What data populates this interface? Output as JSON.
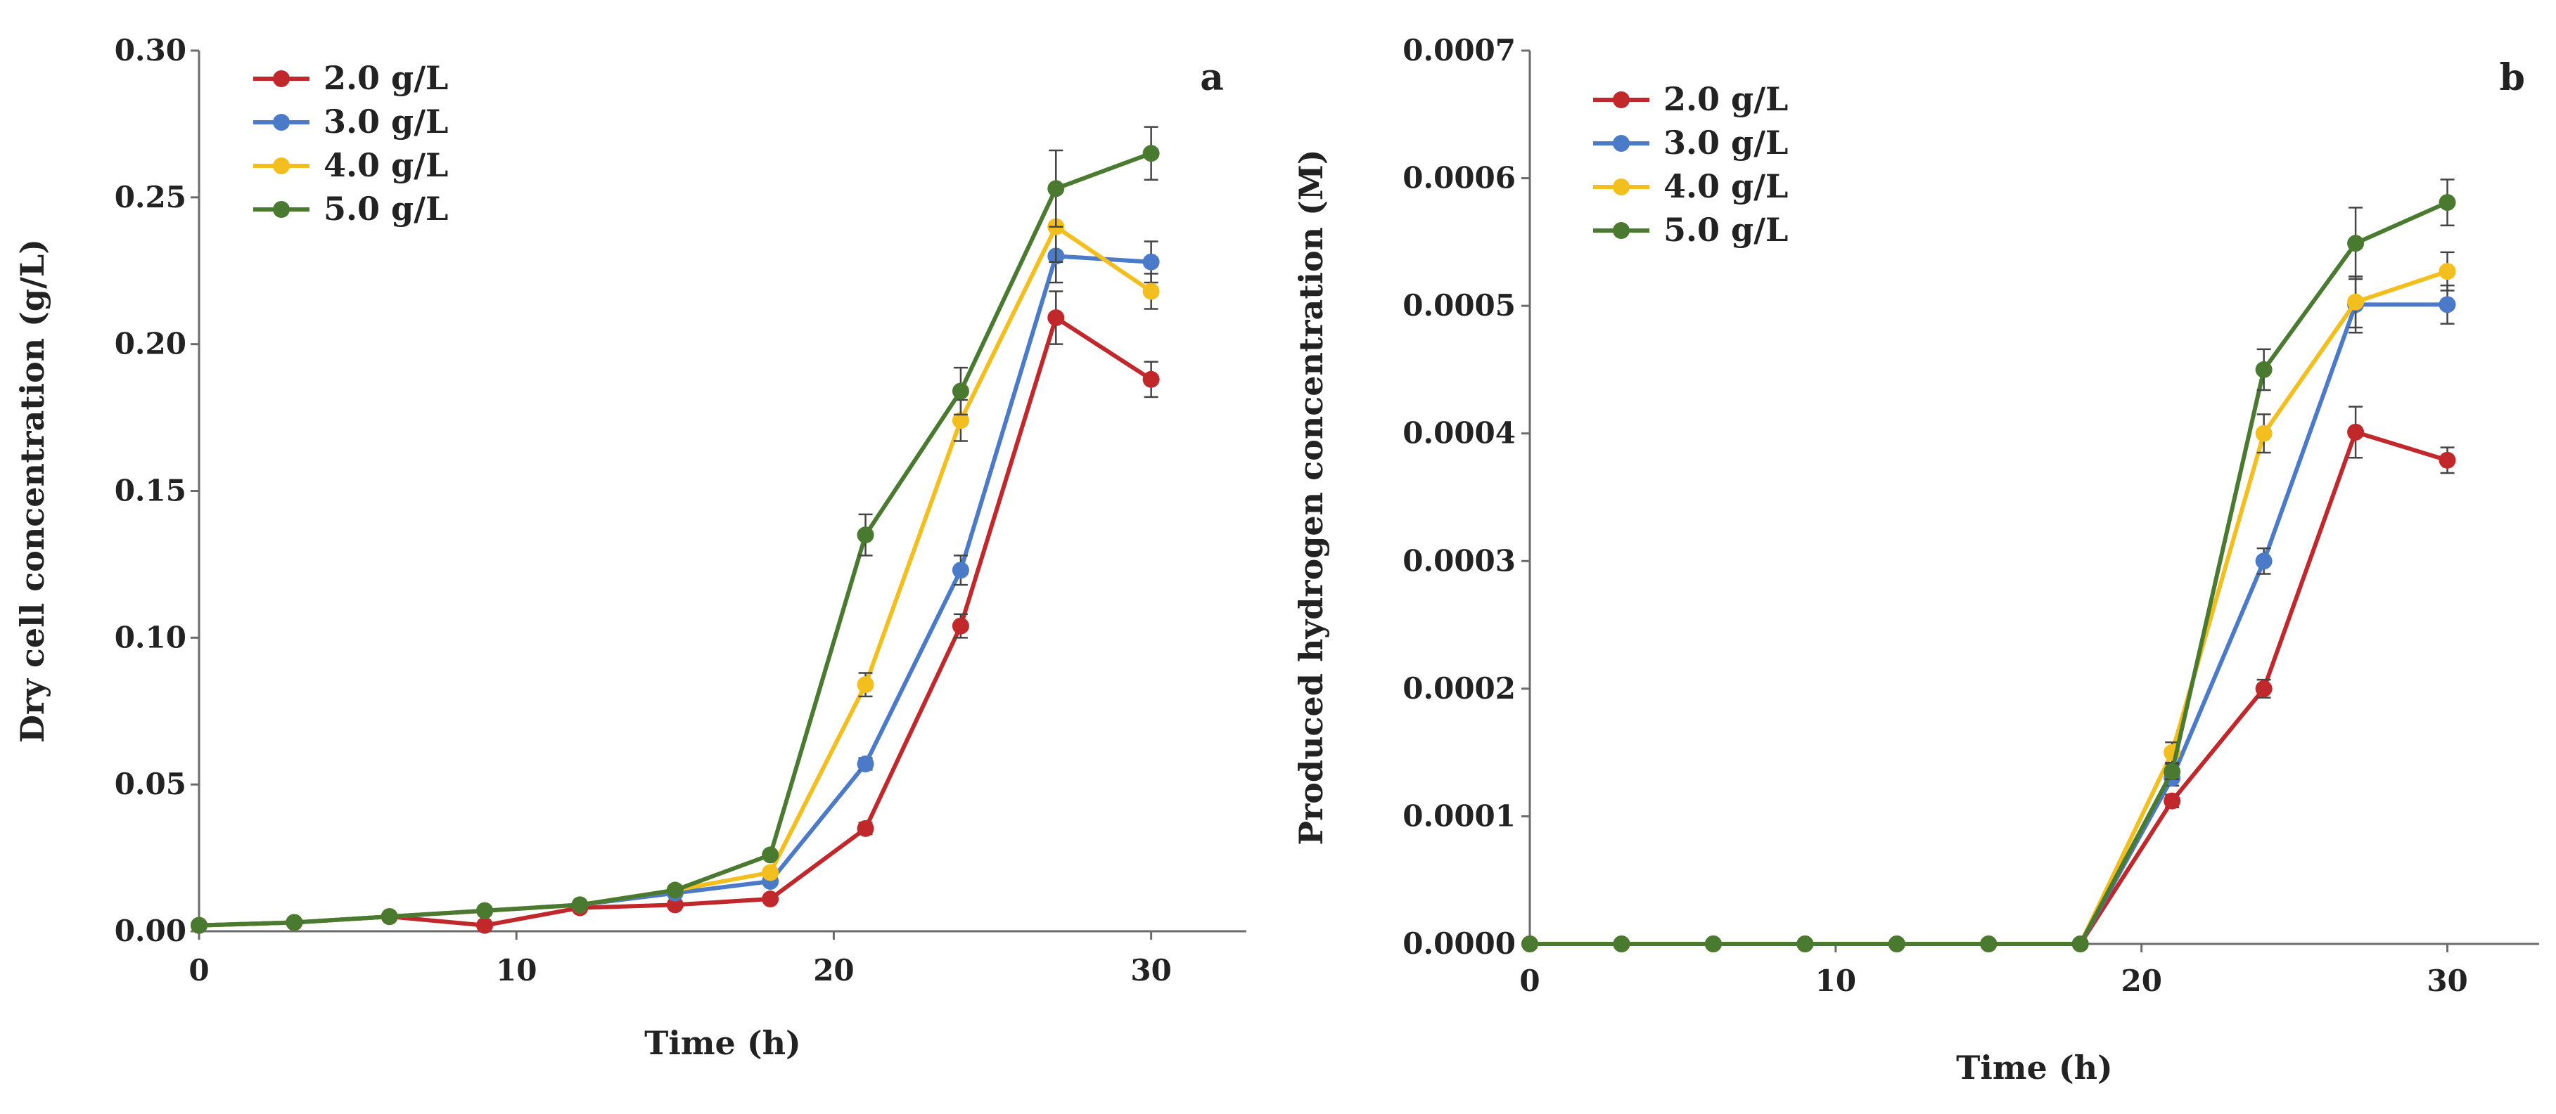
{
  "colors": {
    "2.0 g/L": "#c0282c",
    "3.0 g/L": "#4b7bc8",
    "4.0 g/L": "#f2bf1e",
    "5.0 g/L": "#4a7a30",
    "axis": "#6b6b6b",
    "errorbar": "#444444"
  },
  "chart_data": [
    {
      "type": "line",
      "panel_label": "a",
      "title": "",
      "xlabel": "Time (h)",
      "ylabel": "Dry cell concentration (g/L)",
      "xlim": [
        0,
        33
      ],
      "ylim": [
        0,
        0.3
      ],
      "xticks": [
        0,
        10,
        20,
        30
      ],
      "xtick_labels": [
        "0",
        "10",
        "20",
        "30"
      ],
      "yticks": [
        0,
        0.05,
        0.1,
        0.15,
        0.2,
        0.25,
        0.3
      ],
      "ytick_labels": [
        "0.00",
        "0.05",
        "0.10",
        "0.15",
        "0.20",
        "0.25",
        "0.30"
      ],
      "legend_position": "top-left",
      "x": [
        0,
        3,
        6,
        9,
        12,
        15,
        18,
        21,
        24,
        27,
        30
      ],
      "series": [
        {
          "name": "2.0 g/L",
          "values": [
            0.002,
            0.003,
            0.005,
            0.002,
            0.008,
            0.009,
            0.011,
            0.035,
            0.104,
            0.209,
            0.188
          ],
          "errors": [
            0,
            0,
            0,
            0,
            0,
            0,
            0.001,
            0.002,
            0.004,
            0.009,
            0.006
          ]
        },
        {
          "name": "3.0 g/L",
          "values": [
            0.002,
            0.003,
            0.005,
            0.007,
            0.009,
            0.013,
            0.017,
            0.057,
            0.123,
            0.23,
            0.228
          ],
          "errors": [
            0,
            0,
            0,
            0,
            0,
            0,
            0.001,
            0.002,
            0.005,
            0.009,
            0.007
          ]
        },
        {
          "name": "4.0 g/L",
          "values": [
            0.002,
            0.003,
            0.005,
            0.007,
            0.009,
            0.014,
            0.02,
            0.084,
            0.174,
            0.24,
            0.218
          ],
          "errors": [
            0,
            0,
            0,
            0,
            0,
            0,
            0.001,
            0.004,
            0.007,
            0.012,
            0.006
          ]
        },
        {
          "name": "5.0 g/L",
          "values": [
            0.002,
            0.003,
            0.005,
            0.007,
            0.009,
            0.014,
            0.026,
            0.135,
            0.184,
            0.253,
            0.265
          ],
          "errors": [
            0,
            0,
            0,
            0,
            0,
            0,
            0.001,
            0.007,
            0.008,
            0.013,
            0.009
          ]
        }
      ]
    },
    {
      "type": "line",
      "panel_label": "b",
      "title": "",
      "xlabel": "Time (h)",
      "ylabel": "Produced hydrogen concentration (M)",
      "xlim": [
        0,
        33
      ],
      "ylim": [
        0,
        0.0007
      ],
      "xticks": [
        0,
        10,
        20,
        30
      ],
      "xtick_labels": [
        "0",
        "10",
        "20",
        "30"
      ],
      "yticks": [
        0,
        0.0001,
        0.0002,
        0.0003,
        0.0004,
        0.0005,
        0.0006,
        0.0007
      ],
      "ytick_labels": [
        "0.0000",
        "0.0001",
        "0.0002",
        "0.0003",
        "0.0004",
        "0.0005",
        "0.0006",
        "0.0007"
      ],
      "legend_position": "top-left",
      "x": [
        0,
        3,
        6,
        9,
        12,
        15,
        18,
        21,
        24,
        27,
        30
      ],
      "series": [
        {
          "name": "2.0 g/L",
          "values": [
            0,
            0,
            0,
            0,
            0,
            0,
            0,
            0.000112,
            0.0002,
            0.000401,
            0.000379
          ],
          "errors": [
            0,
            0,
            0,
            0,
            0,
            0,
            0,
            5e-06,
            7e-06,
            2e-05,
            1e-05
          ]
        },
        {
          "name": "3.0 g/L",
          "values": [
            0,
            0,
            0,
            0,
            0,
            0,
            0,
            0.00013,
            0.0003,
            0.000501,
            0.000501
          ],
          "errors": [
            0,
            0,
            0,
            0,
            0,
            0,
            0,
            6e-06,
            1e-05,
            2.2e-05,
            1.5e-05
          ]
        },
        {
          "name": "4.0 g/L",
          "values": [
            0,
            0,
            0,
            0,
            0,
            0,
            0,
            0.00015,
            0.0004,
            0.000503,
            0.000527
          ],
          "errors": [
            0,
            0,
            0,
            0,
            0,
            0,
            0,
            8e-06,
            1.5e-05,
            2e-05,
            1.5e-05
          ]
        },
        {
          "name": "5.0 g/L",
          "values": [
            0,
            0,
            0,
            0,
            0,
            0,
            0,
            0.000135,
            0.00045,
            0.000549,
            0.000581
          ],
          "errors": [
            0,
            0,
            0,
            0,
            0,
            0,
            0,
            6e-06,
            1.6e-05,
            2.8e-05,
            1.8e-05
          ]
        }
      ]
    }
  ]
}
